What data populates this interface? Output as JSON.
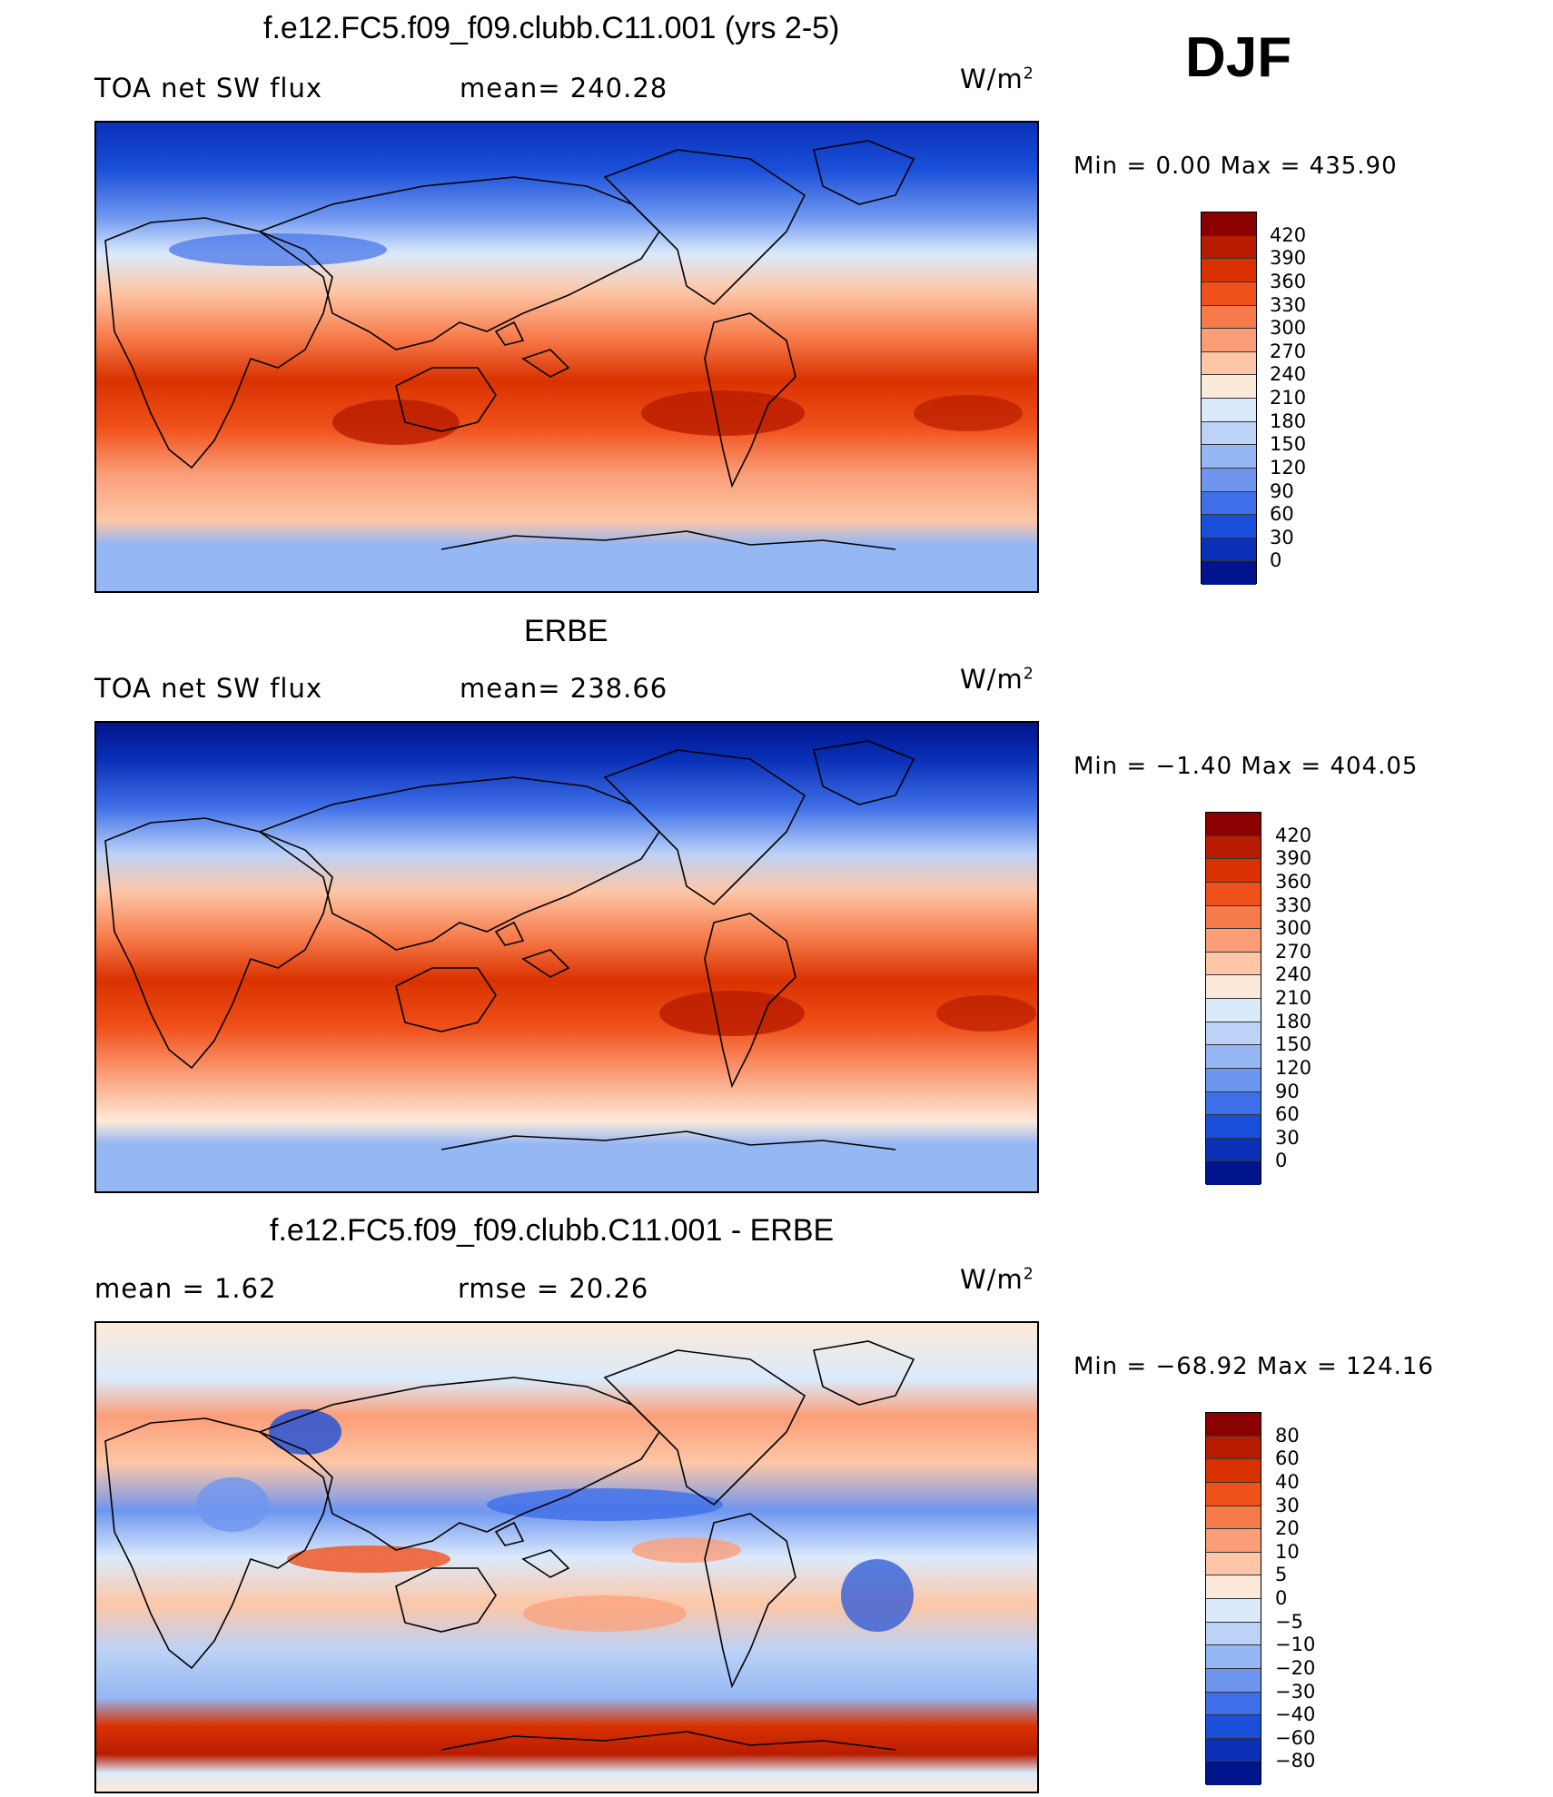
{
  "season": "DJF",
  "panels": [
    {
      "title": "f.e12.FC5.f09_f09.clubb.C11.001 (yrs 2-5)",
      "left_label": "TOA net SW flux",
      "mid_label": "mean= 240.28",
      "units": "W/m",
      "units_sup": "2",
      "minmax": "Min =    0.00  Max  =  435.90",
      "levels": [
        "420",
        "390",
        "360",
        "330",
        "300",
        "270",
        "240",
        "210",
        "180",
        "150",
        "120",
        "90",
        "60",
        "30",
        "0"
      ],
      "colors": [
        "#8b0000",
        "#b81c00",
        "#d93200",
        "#f0501a",
        "#f77a4a",
        "#fb9e78",
        "#fdc7a7",
        "#fde9d9",
        "#dbeafb",
        "#bcd2f7",
        "#95b7f3",
        "#6e96ef",
        "#3f6fe8",
        "#1a4fd9",
        "#0a30b8",
        "#00158c"
      ]
    },
    {
      "title": "ERBE",
      "left_label": "TOA net SW flux",
      "mid_label": "mean= 238.66",
      "units": "W/m",
      "units_sup": "2",
      "minmax": "Min =   −1.40  Max  =  404.05",
      "levels": [
        "420",
        "390",
        "360",
        "330",
        "300",
        "270",
        "240",
        "210",
        "180",
        "150",
        "120",
        "90",
        "60",
        "30",
        "0"
      ],
      "colors": [
        "#8b0000",
        "#b81c00",
        "#d93200",
        "#f0501a",
        "#f77a4a",
        "#fb9e78",
        "#fdc7a7",
        "#fde9d9",
        "#dbeafb",
        "#bcd2f7",
        "#95b7f3",
        "#6e96ef",
        "#3f6fe8",
        "#1a4fd9",
        "#0a30b8",
        "#00158c"
      ]
    },
    {
      "title": "f.e12.FC5.f09_f09.clubb.C11.001 - ERBE",
      "left_label": "mean =     1.62",
      "mid_label": "rmse =    20.26",
      "units": "W/m",
      "units_sup": "2",
      "minmax": "Min  = −68.92  Max  =  124.16",
      "levels": [
        "80",
        "60",
        "40",
        "30",
        "20",
        "10",
        "5",
        "0",
        "−5",
        "−10",
        "−20",
        "−30",
        "−40",
        "−60",
        "−80"
      ],
      "colors": [
        "#8b0000",
        "#b81c00",
        "#d93200",
        "#f0501a",
        "#f77a4a",
        "#fb9e78",
        "#fdc7a7",
        "#fde9d9",
        "#dbeafb",
        "#bcd2f7",
        "#95b7f3",
        "#6e96ef",
        "#3f6fe8",
        "#1a4fd9",
        "#0a30b8",
        "#00158c"
      ]
    }
  ]
}
